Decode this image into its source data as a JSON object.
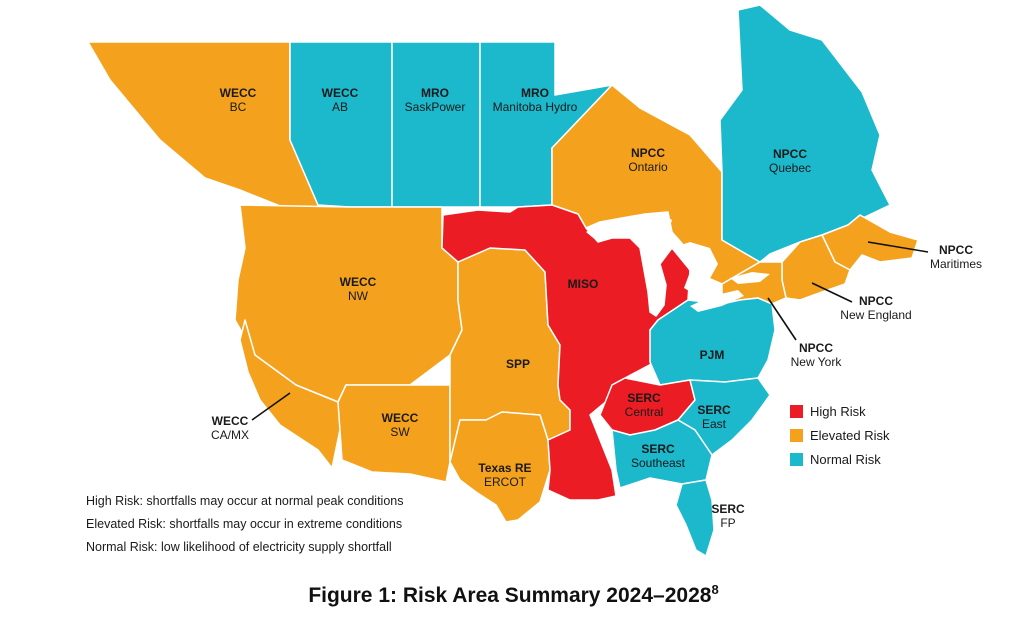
{
  "colors": {
    "high": "#ec1c24",
    "elevated": "#f4a21d",
    "normal": "#1cb8cc",
    "water": "#ffffff",
    "border": "#ffffff"
  },
  "regions": [
    {
      "id": "wecc-bc",
      "name": "WECC",
      "sub": "BC",
      "risk": "elevated"
    },
    {
      "id": "wecc-ab",
      "name": "WECC",
      "sub": "AB",
      "risk": "normal"
    },
    {
      "id": "mro-sask",
      "name": "MRO",
      "sub": "SaskPower",
      "risk": "normal"
    },
    {
      "id": "mro-manitoba",
      "name": "MRO",
      "sub": "Manitoba Hydro",
      "risk": "normal"
    },
    {
      "id": "npcc-ontario",
      "name": "NPCC",
      "sub": "Ontario",
      "risk": "elevated"
    },
    {
      "id": "npcc-quebec",
      "name": "NPCC",
      "sub": "Quebec",
      "risk": "normal"
    },
    {
      "id": "npcc-maritimes",
      "name": "NPCC",
      "sub": "Maritimes",
      "risk": "elevated"
    },
    {
      "id": "npcc-new-england",
      "name": "NPCC",
      "sub": "New England",
      "risk": "elevated"
    },
    {
      "id": "npcc-new-york",
      "name": "NPCC",
      "sub": "New York",
      "risk": "elevated"
    },
    {
      "id": "wecc-nw",
      "name": "WECC",
      "sub": "NW",
      "risk": "elevated"
    },
    {
      "id": "wecc-camx",
      "name": "WECC",
      "sub": "CA/MX",
      "risk": "elevated"
    },
    {
      "id": "wecc-sw",
      "name": "WECC",
      "sub": "SW",
      "risk": "elevated"
    },
    {
      "id": "spp",
      "name": "SPP",
      "sub": "",
      "risk": "elevated"
    },
    {
      "id": "texas-re",
      "name": "Texas RE",
      "sub": "ERCOT",
      "risk": "elevated"
    },
    {
      "id": "miso",
      "name": "MISO",
      "sub": "",
      "risk": "high"
    },
    {
      "id": "pjm",
      "name": "PJM",
      "sub": "",
      "risk": "normal"
    },
    {
      "id": "serc-central",
      "name": "SERC",
      "sub": "Central",
      "risk": "high"
    },
    {
      "id": "serc-east",
      "name": "SERC",
      "sub": "East",
      "risk": "normal"
    },
    {
      "id": "serc-southeast",
      "name": "SERC",
      "sub": "Southeast",
      "risk": "normal"
    },
    {
      "id": "serc-fp",
      "name": "SERC",
      "sub": "FP",
      "risk": "normal"
    }
  ],
  "legend": {
    "high": "High Risk",
    "elevated": "Elevated Risk",
    "normal": "Normal Risk"
  },
  "notes": {
    "high": "High Risk: shortfalls may occur at normal peak conditions",
    "elevated": "Elevated Risk: shortfalls may occur in extreme conditions",
    "normal": "Normal Risk: low likelihood of electricity supply shortfall"
  },
  "caption": {
    "text": "Figure 1: Risk Area Summary 2024–2028",
    "footnote": "8"
  }
}
